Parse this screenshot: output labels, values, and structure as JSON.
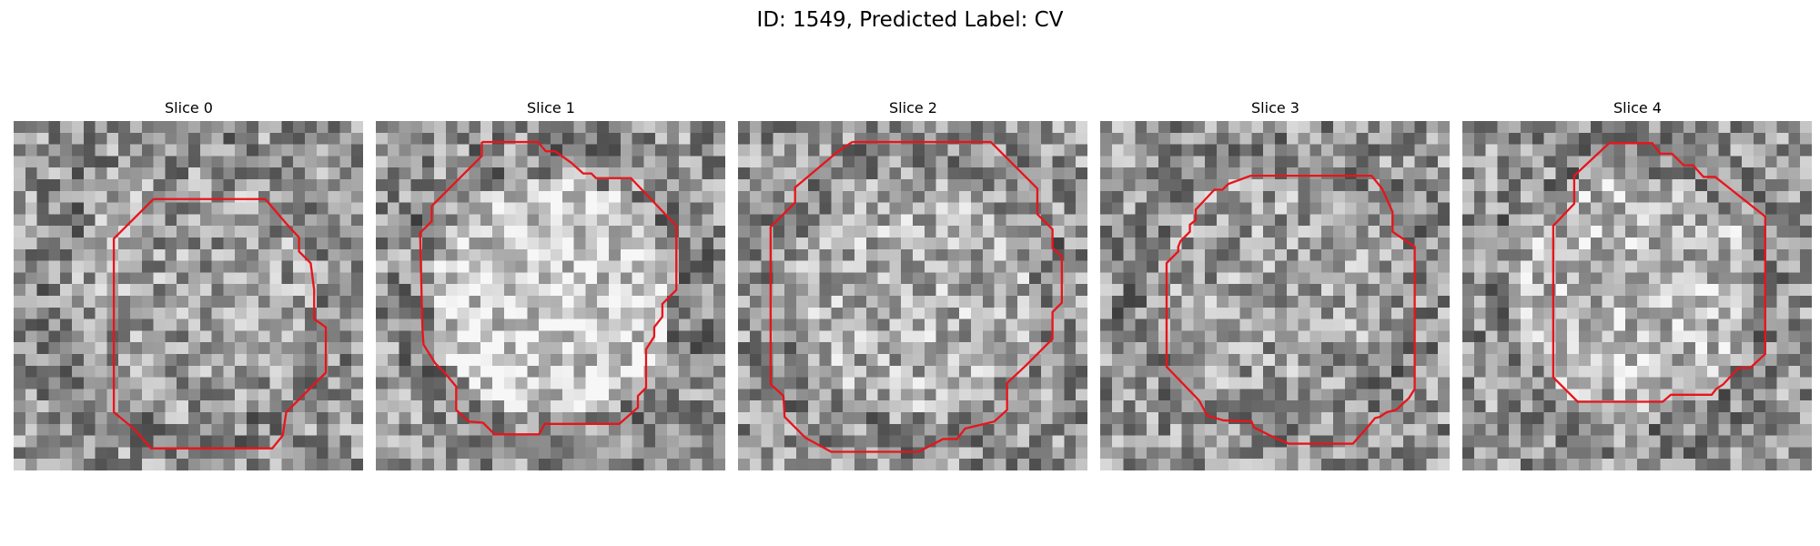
{
  "figure": {
    "title": "ID: 1549, Predicted Label: CV"
  },
  "slices": [
    {
      "title": "Slice 0",
      "seed": 11,
      "bright_center": 0.0
    },
    {
      "title": "Slice 1",
      "seed": 23,
      "bright_center": 0.18
    },
    {
      "title": "Slice 2",
      "seed": 37,
      "bright_center": 0.06
    },
    {
      "title": "Slice 3",
      "seed": 41,
      "bright_center": 0.0
    },
    {
      "title": "Slice 4",
      "seed": 53,
      "bright_center": 0.1
    }
  ],
  "contour_color": "#e8141b",
  "colormap": "gray"
}
